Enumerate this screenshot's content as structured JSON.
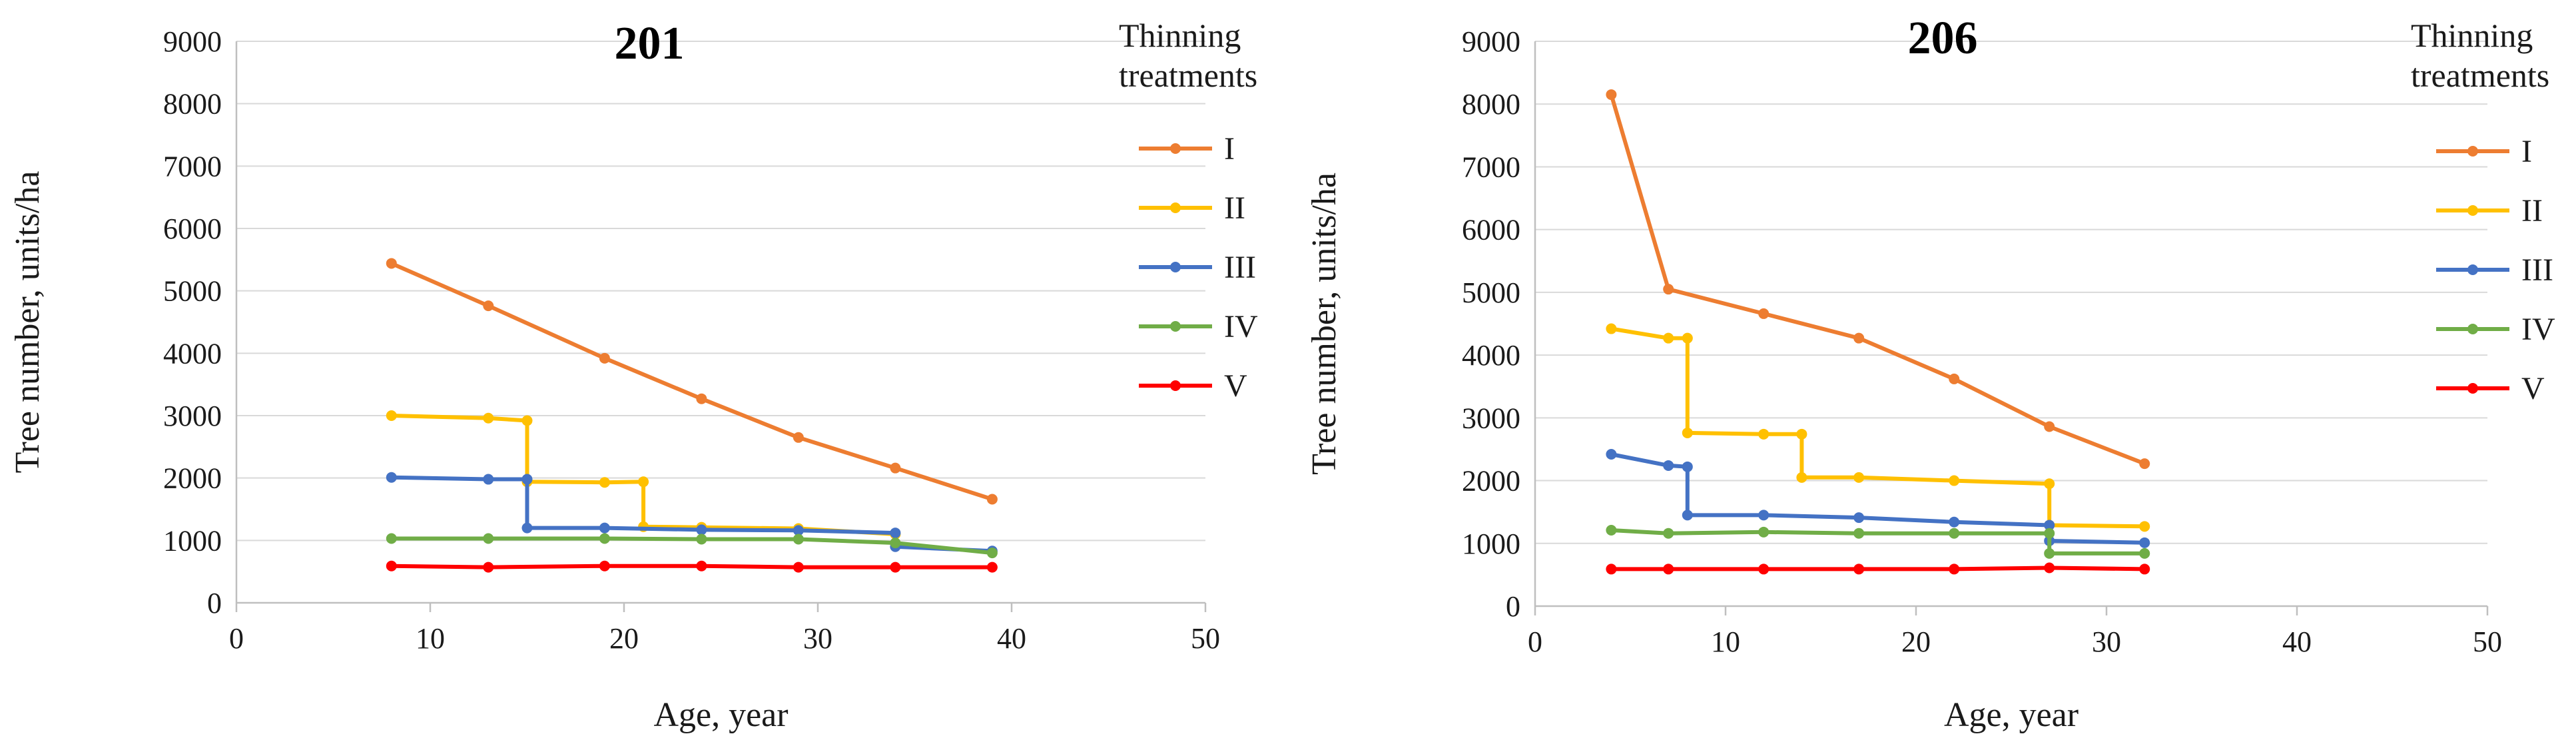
{
  "chart_data": [
    {
      "type": "line",
      "title": "201",
      "xlabel": "Age, year",
      "ylabel": "Tree number, units/ha",
      "xlim": [
        0,
        50
      ],
      "ylim": [
        0,
        9000
      ],
      "xticks": [
        "0",
        "10",
        "20",
        "30",
        "40",
        "50"
      ],
      "yticks": [
        "0",
        "1000",
        "2000",
        "3000",
        "4000",
        "5000",
        "6000",
        "7000",
        "8000",
        "9000"
      ],
      "legend_title_lines": [
        "Thinning",
        "treatments"
      ],
      "legend_position": "right",
      "series": [
        {
          "name": "I",
          "color": "#ED7D31",
          "x": [
            8,
            13,
            19,
            24,
            29,
            34,
            39
          ],
          "y": [
            5440,
            4760,
            3920,
            3270,
            2650,
            2160,
            1660
          ]
        },
        {
          "name": "II",
          "color": "#FFC000",
          "x": [
            8,
            13,
            15,
            15,
            19,
            21,
            21,
            24,
            29,
            34
          ],
          "y": [
            3000,
            2960,
            2920,
            1940,
            1930,
            1940,
            1220,
            1210,
            1190,
            1100
          ]
        },
        {
          "name": "III",
          "color": "#4472C4",
          "x": [
            8,
            13,
            15,
            15,
            19,
            24,
            29,
            34,
            34,
            39
          ],
          "y": [
            2010,
            1980,
            1980,
            1200,
            1200,
            1170,
            1160,
            1120,
            900,
            830
          ]
        },
        {
          "name": "IV",
          "color": "#70AD47",
          "x": [
            8,
            13,
            19,
            24,
            29,
            34,
            39
          ],
          "y": [
            1030,
            1030,
            1030,
            1020,
            1020,
            960,
            800
          ]
        },
        {
          "name": "V",
          "color": "#FF0000",
          "x": [
            8,
            13,
            19,
            24,
            29,
            34,
            39
          ],
          "y": [
            590,
            570,
            590,
            590,
            570,
            570,
            570
          ]
        }
      ]
    },
    {
      "type": "line",
      "title": "206",
      "xlabel": "Age, year",
      "ylabel": "Tree number, units/ha",
      "xlim": [
        0,
        50
      ],
      "ylim": [
        0,
        9000
      ],
      "xticks": [
        "0",
        "10",
        "20",
        "30",
        "40",
        "50"
      ],
      "yticks": [
        "0",
        "1000",
        "2000",
        "3000",
        "4000",
        "5000",
        "6000",
        "7000",
        "8000",
        "9000"
      ],
      "legend_title_lines": [
        "Thinning",
        "treatments"
      ],
      "legend_position": "right",
      "series": [
        {
          "name": "I",
          "color": "#ED7D31",
          "x": [
            4,
            7,
            12,
            17,
            22,
            27,
            32
          ],
          "y": [
            8150,
            5050,
            4660,
            4270,
            3620,
            2860,
            2270
          ]
        },
        {
          "name": "II",
          "color": "#FFC000",
          "x": [
            4,
            7,
            8,
            8,
            12,
            14,
            14,
            17,
            22,
            27,
            27,
            32
          ],
          "y": [
            4420,
            4270,
            4270,
            2760,
            2740,
            2740,
            2050,
            2050,
            2000,
            1950,
            1290,
            1270
          ]
        },
        {
          "name": "III",
          "color": "#4472C4",
          "x": [
            4,
            7,
            8,
            8,
            12,
            17,
            22,
            27,
            27,
            32
          ],
          "y": [
            2420,
            2240,
            2220,
            1450,
            1450,
            1410,
            1340,
            1290,
            1040,
            1010
          ]
        },
        {
          "name": "IV",
          "color": "#70AD47",
          "x": [
            4,
            7,
            12,
            17,
            22,
            27,
            27,
            32
          ],
          "y": [
            1210,
            1160,
            1180,
            1160,
            1160,
            1160,
            840,
            840
          ]
        },
        {
          "name": "V",
          "color": "#FF0000",
          "x": [
            4,
            7,
            12,
            17,
            22,
            27,
            32
          ],
          "y": [
            590,
            590,
            590,
            590,
            590,
            610,
            590
          ]
        }
      ]
    }
  ]
}
